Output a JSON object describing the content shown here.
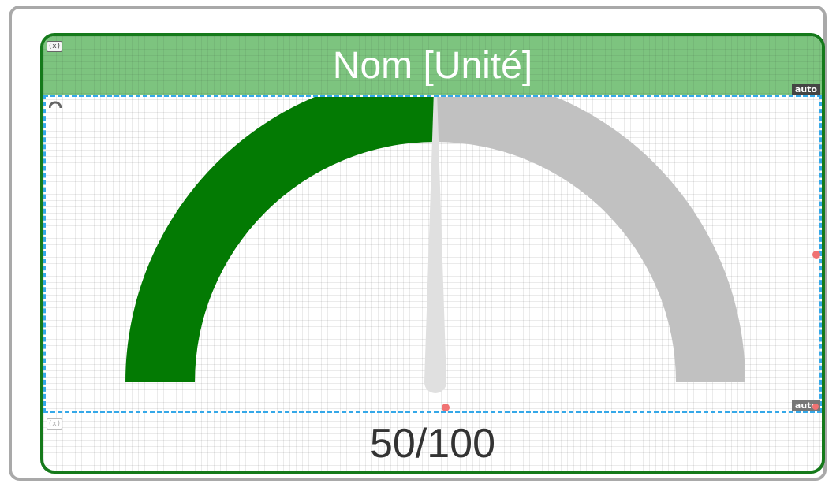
{
  "widget": {
    "title": "Nom [Unité]",
    "value_text": "50/100",
    "fx_label": "(x)",
    "auto_label": "auto"
  },
  "gauge": {
    "min": 0,
    "max": 100,
    "value": 50,
    "fill_color": "#037a03",
    "track_color": "#c1c1c1",
    "needle_color": "#e0e0e0",
    "gauge_icon": "gauge-icon"
  },
  "colors": {
    "header_bg": "#7dc47f",
    "border": "#157a1b",
    "selection": "#35a8e8",
    "handle": "#f07272"
  }
}
